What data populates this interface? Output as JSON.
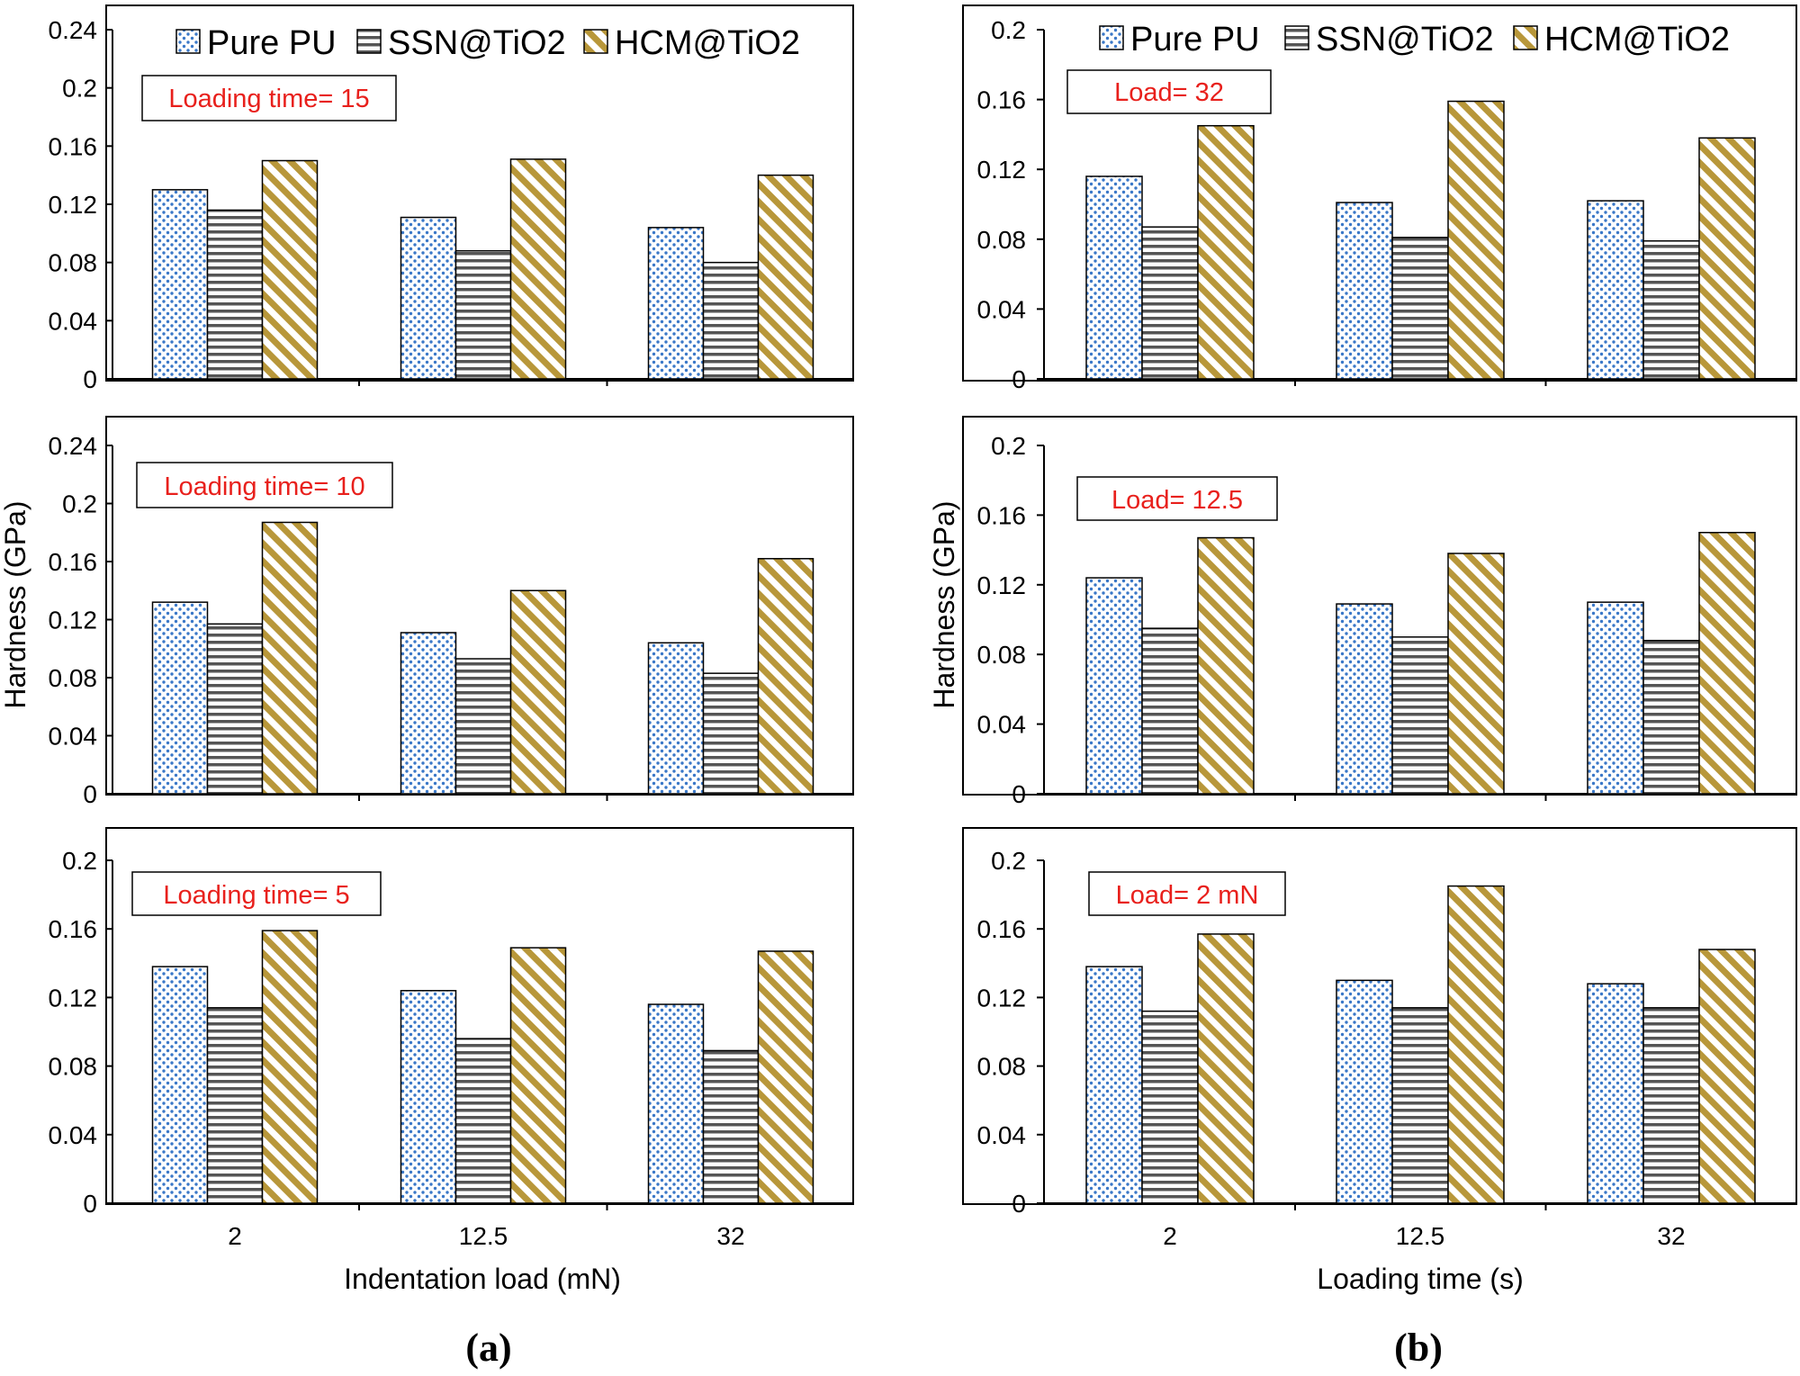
{
  "colors": {
    "pure_pu_fill": "#3a78c8",
    "ssn_fill": "#555555",
    "hcm_fill": "#b8973a",
    "annotation": "#e8201c"
  },
  "legend": [
    "Pure PU",
    "SSN@TiO2",
    "HCM@TiO2"
  ],
  "panel_labels": [
    "(a)",
    "(b)"
  ],
  "chart_data": [
    {
      "type": "bar",
      "column": "a",
      "annotation": "Loading time= 15",
      "categories": [
        "2",
        "12.5",
        "32"
      ],
      "ylabel": "",
      "xlabel": "",
      "ylim": [
        0,
        0.24
      ],
      "yticks": [
        "0",
        "0.04",
        "0.08",
        "0.12",
        "0.16",
        "0.2",
        "0.24"
      ],
      "series": [
        {
          "name": "Pure PU",
          "values": [
            0.13,
            0.111,
            0.104
          ]
        },
        {
          "name": "SSN@TiO2",
          "values": [
            0.116,
            0.088,
            0.08
          ]
        },
        {
          "name": "HCM@TiO2",
          "values": [
            0.15,
            0.151,
            0.14
          ]
        }
      ],
      "legend_position": "top"
    },
    {
      "type": "bar",
      "column": "a",
      "annotation": "Loading time= 10",
      "categories": [
        "2",
        "12.5",
        "32"
      ],
      "ylabel": "Hardness (GPa)",
      "xlabel": "",
      "ylim": [
        0,
        0.24
      ],
      "yticks": [
        "0",
        "0.04",
        "0.08",
        "0.12",
        "0.16",
        "0.2",
        "0.24"
      ],
      "series": [
        {
          "name": "Pure PU",
          "values": [
            0.132,
            0.111,
            0.104
          ]
        },
        {
          "name": "SSN@TiO2",
          "values": [
            0.117,
            0.093,
            0.083
          ]
        },
        {
          "name": "HCM@TiO2",
          "values": [
            0.187,
            0.14,
            0.162
          ]
        }
      ]
    },
    {
      "type": "bar",
      "column": "a",
      "annotation": "Loading time= 5",
      "categories": [
        "2",
        "12.5",
        "32"
      ],
      "ylabel": "",
      "xlabel": "Indentation load (mN)",
      "ylim": [
        0,
        0.2
      ],
      "yticks": [
        "0",
        "0.04",
        "0.08",
        "0.12",
        "0.16",
        "0.2"
      ],
      "series": [
        {
          "name": "Pure PU",
          "values": [
            0.138,
            0.124,
            0.116
          ]
        },
        {
          "name": "SSN@TiO2",
          "values": [
            0.114,
            0.096,
            0.089
          ]
        },
        {
          "name": "HCM@TiO2",
          "values": [
            0.159,
            0.149,
            0.147
          ]
        }
      ]
    },
    {
      "type": "bar",
      "column": "b",
      "annotation": "Load= 32",
      "categories": [
        "2",
        "12.5",
        "32"
      ],
      "ylabel": "",
      "xlabel": "",
      "ylim": [
        0,
        0.2
      ],
      "yticks": [
        "0",
        "0.04",
        "0.08",
        "0.12",
        "0.16",
        "0.2"
      ],
      "series": [
        {
          "name": "Pure PU",
          "values": [
            0.116,
            0.101,
            0.102
          ]
        },
        {
          "name": "SSN@TiO2",
          "values": [
            0.087,
            0.081,
            0.079
          ]
        },
        {
          "name": "HCM@TiO2",
          "values": [
            0.145,
            0.159,
            0.138
          ]
        }
      ],
      "legend_position": "top"
    },
    {
      "type": "bar",
      "column": "b",
      "annotation": "Load= 12.5",
      "categories": [
        "2",
        "12.5",
        "32"
      ],
      "ylabel": "Hardness (GPa)",
      "xlabel": "",
      "ylim": [
        0,
        0.2
      ],
      "yticks": [
        "0",
        "0.04",
        "0.08",
        "0.12",
        "0.16",
        "0.2"
      ],
      "series": [
        {
          "name": "Pure PU",
          "values": [
            0.124,
            0.109,
            0.11
          ]
        },
        {
          "name": "SSN@TiO2",
          "values": [
            0.095,
            0.09,
            0.088
          ]
        },
        {
          "name": "HCM@TiO2",
          "values": [
            0.147,
            0.138,
            0.15
          ]
        }
      ]
    },
    {
      "type": "bar",
      "column": "b",
      "annotation": "Load= 2 mN",
      "categories": [
        "2",
        "12.5",
        "32"
      ],
      "ylabel": "",
      "xlabel": "Loading time (s)",
      "ylim": [
        0,
        0.2
      ],
      "yticks": [
        "0",
        "0.04",
        "0.08",
        "0.12",
        "0.16",
        "0.2"
      ],
      "series": [
        {
          "name": "Pure PU",
          "values": [
            0.138,
            0.13,
            0.128
          ]
        },
        {
          "name": "SSN@TiO2",
          "values": [
            0.112,
            0.114,
            0.114
          ]
        },
        {
          "name": "HCM@TiO2",
          "values": [
            0.157,
            0.185,
            0.148
          ]
        }
      ]
    }
  ]
}
